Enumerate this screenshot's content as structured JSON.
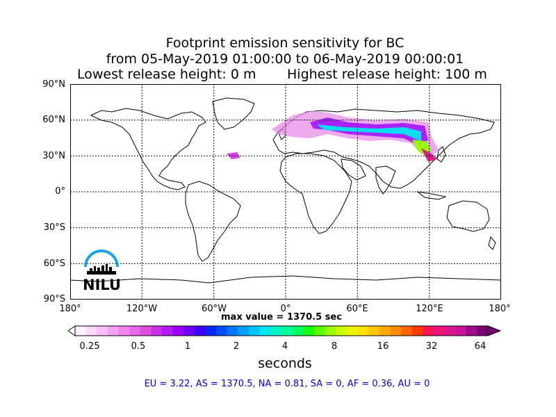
{
  "title": {
    "line1": "Footprint emission sensitivity for BC",
    "line2": "from 05-May-2019 01:00:00 to 06-May-2019 00:00:01",
    "lowest": "Lowest release height: 0 m",
    "highest": "Highest release height: 100 m"
  },
  "lat_labels": [
    "90°N",
    "60°N",
    "30°N",
    "0°",
    "30°S",
    "60°S",
    "90°S"
  ],
  "lon_labels": [
    "180°",
    "120°W",
    "60°W",
    "0°",
    "60°E",
    "120°E",
    "180°"
  ],
  "max_value": "max value = 1370.5 sec",
  "colorbar": {
    "ticks": [
      "0.25",
      "0.5",
      "1",
      "2",
      "4",
      "8",
      "16",
      "32",
      "64"
    ],
    "units": "seconds"
  },
  "stats": "EU = 3.22,  AS = 1370.5,  NA = 0.81,  SA = 0,  AF = 0.36,  AU = 0",
  "logo": {
    "text": "NILU"
  },
  "colors": {
    "stats": "#0000cc",
    "cbar": [
      "#fff0ff",
      "#fcd7fc",
      "#f9bdf9",
      "#f4a1f4",
      "#ee86ee",
      "#e66ae6",
      "#db4ddb",
      "#cc30e6",
      "#b31af2",
      "#9900ff",
      "#7000ff",
      "#4000ff",
      "#0a28ff",
      "#0050ff",
      "#0078ff",
      "#00a0ff",
      "#00c8ff",
      "#00e6f0",
      "#00f5c8",
      "#00ffa0",
      "#00ff60",
      "#14ff14",
      "#5aff00",
      "#96ff00",
      "#c8ff00",
      "#ebf500",
      "#ffe100",
      "#ffc800",
      "#ffaa00",
      "#ff8c00",
      "#ff6400",
      "#ff3c00",
      "#ff1450",
      "#f0147a",
      "#dc148c",
      "#c81496",
      "#a00a8c",
      "#780070"
    ]
  }
}
